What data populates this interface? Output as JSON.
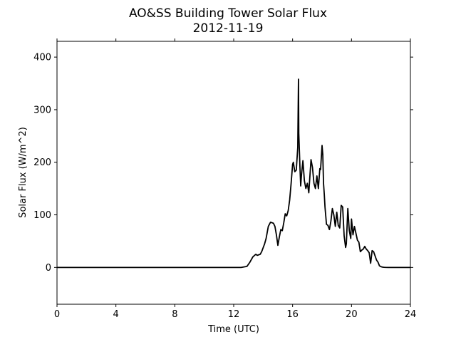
{
  "chart_data": {
    "type": "line",
    "title": "AO&SS Building Tower Solar Flux",
    "subtitle": "2012-11-19",
    "xlabel": "Time (UTC)",
    "ylabel": "Solar Flux (W/m^2)",
    "xlim": [
      0,
      24
    ],
    "ylim": [
      -70,
      430
    ],
    "xticks": [
      0,
      4,
      8,
      12,
      16,
      20,
      24
    ],
    "yticks": [
      0,
      100,
      200,
      300,
      400
    ],
    "grid": false,
    "legend": "none",
    "line_color": "#000000",
    "series": [
      {
        "x": [
          0,
          12.5,
          12.9,
          13.1,
          13.3,
          13.5,
          13.6,
          13.8,
          13.9,
          14.1,
          14.2,
          14.35,
          14.5,
          14.7,
          14.8,
          14.9,
          15.0,
          15.1,
          15.2,
          15.3,
          15.4,
          15.5,
          15.6,
          15.7,
          15.8,
          15.9,
          16.0,
          16.05,
          16.15,
          16.25,
          16.35,
          16.4,
          16.42,
          16.5,
          16.55,
          16.6,
          16.7,
          16.8,
          16.9,
          17.0,
          17.1,
          17.25,
          17.35,
          17.45,
          17.55,
          17.65,
          17.75,
          17.85,
          17.9,
          18.0,
          18.05,
          18.1,
          18.15,
          18.2,
          18.3,
          18.4,
          18.5,
          18.6,
          18.7,
          18.8,
          18.9,
          19.0,
          19.1,
          19.2,
          19.3,
          19.4,
          19.5,
          19.6,
          19.65,
          19.75,
          19.85,
          19.95,
          20.0,
          20.1,
          20.2,
          20.3,
          20.4,
          20.5,
          20.6,
          20.7,
          20.8,
          20.9,
          21.0,
          21.1,
          21.2,
          21.3,
          21.4,
          21.5,
          21.55,
          21.6,
          21.7,
          21.8,
          21.9,
          22.0,
          22.1,
          22.2,
          22.3,
          22.5,
          22.8,
          23.0,
          24.0
        ],
        "y": [
          0,
          0,
          2,
          10,
          20,
          25,
          23,
          25,
          30,
          45,
          55,
          78,
          86,
          84,
          78,
          62,
          42,
          58,
          72,
          70,
          85,
          102,
          98,
          108,
          128,
          160,
          196,
          200,
          182,
          185,
          228,
          358,
          255,
          190,
          155,
          175,
          203,
          165,
          150,
          160,
          142,
          205,
          190,
          160,
          150,
          174,
          150,
          188,
          186,
          232,
          215,
          160,
          140,
          115,
          82,
          80,
          72,
          88,
          112,
          100,
          78,
          105,
          80,
          75,
          118,
          115,
          60,
          38,
          45,
          112,
          70,
          55,
          92,
          62,
          78,
          65,
          52,
          48,
          30,
          33,
          35,
          40,
          35,
          32,
          28,
          8,
          32,
          30,
          26,
          22,
          14,
          10,
          3,
          1.5,
          0.6,
          0.3,
          0.1,
          0,
          0,
          0,
          0
        ]
      }
    ]
  }
}
